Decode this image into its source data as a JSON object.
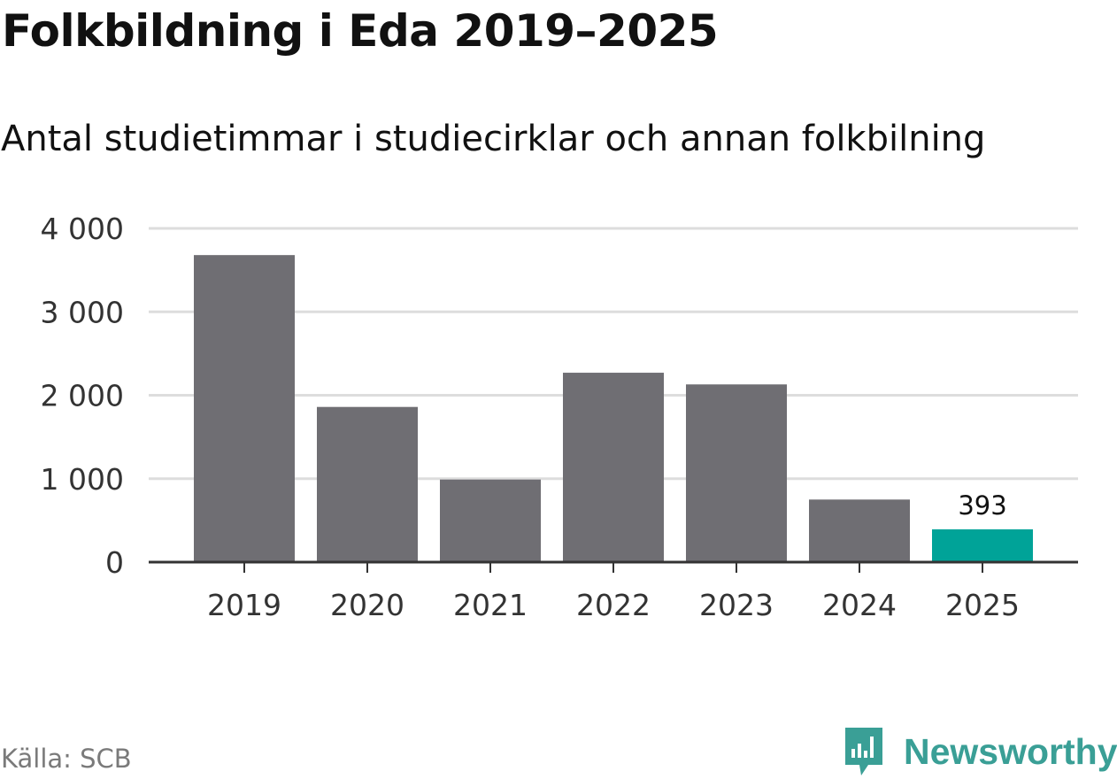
{
  "header": {
    "title": "Folkbildning i Eda 2019–2025",
    "subtitle": "Antal studietimmar i studiecirklar och annan folkbilning"
  },
  "footer": {
    "source": "Källa: SCB",
    "brand": "Newsworthy",
    "brand_icon": "newsworthy-chart-icon"
  },
  "colors": {
    "bar": "#6f6e73",
    "highlight": "#00a398",
    "grid": "#dddddd",
    "axis": "#333333",
    "brand": "#3a9f96"
  },
  "chart_data": {
    "type": "bar",
    "categories": [
      "2019",
      "2020",
      "2021",
      "2022",
      "2023",
      "2024",
      "2025"
    ],
    "values": [
      3680,
      1860,
      990,
      2270,
      2130,
      750,
      393
    ],
    "highlight_index": 6,
    "data_labels": [
      {
        "index": 6,
        "text": "393"
      }
    ],
    "title": "Folkbildning i Eda 2019–2025",
    "subtitle": "Antal studietimmar i studiecirklar och annan folkbilning",
    "xlabel": "",
    "ylabel": "",
    "ylim": [
      0,
      4000
    ],
    "yticks": [
      {
        "value": 0,
        "label": "0"
      },
      {
        "value": 1000,
        "label": "1 000"
      },
      {
        "value": 2000,
        "label": "2 000"
      },
      {
        "value": 3000,
        "label": "3 000"
      },
      {
        "value": 4000,
        "label": "4 000"
      }
    ],
    "grid": true,
    "legend": "none"
  }
}
